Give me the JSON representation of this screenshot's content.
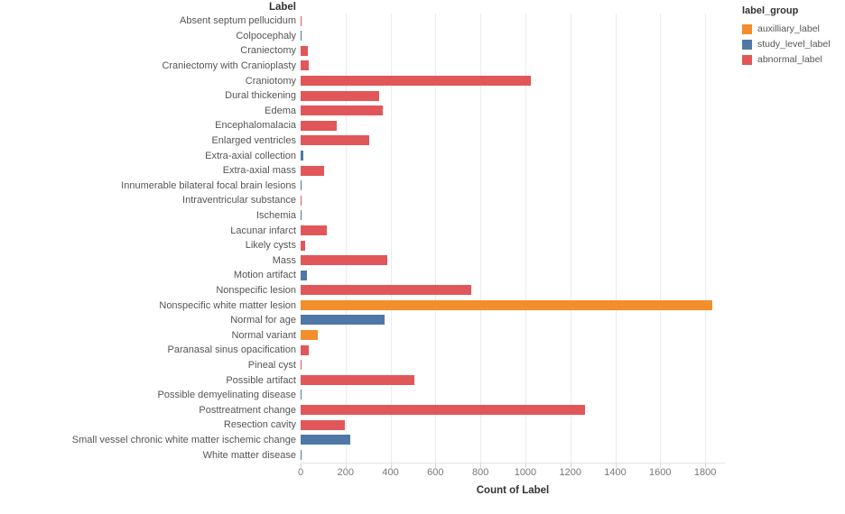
{
  "chart_title": "Label",
  "x_axis_title": "Count of Label",
  "legend": {
    "title": "label_group",
    "items": [
      {
        "key": "auxilliary_label",
        "label": "auxilliary_label",
        "color": "#f28e2b"
      },
      {
        "key": "study_level_label",
        "label": "study_level_label",
        "color": "#4e79a7"
      },
      {
        "key": "abnormal_label",
        "label": "abnormal_label",
        "color": "#e15759"
      }
    ]
  },
  "chart_data": {
    "type": "bar",
    "orientation": "horizontal",
    "title": "Label",
    "xlabel": "Count of Label",
    "ylabel": "Label",
    "xlim": [
      0,
      1888
    ],
    "x_ticks": [
      0,
      200,
      400,
      600,
      800,
      1000,
      1200,
      1400,
      1600,
      1800
    ],
    "grid": true,
    "legend_position": "top-right",
    "legend_title": "label_group",
    "groups": {
      "auxilliary_label": {
        "color": "#f28e2b"
      },
      "study_level_label": {
        "color": "#4e79a7"
      },
      "abnormal_label": {
        "color": "#e15759"
      }
    },
    "rows": [
      {
        "label": "Absent septum pellucidum",
        "group": "abnormal_label",
        "value": 3
      },
      {
        "label": "Colpocephaly",
        "group": "study_level_label",
        "value": 3
      },
      {
        "label": "Craniectomy",
        "group": "abnormal_label",
        "value": 32
      },
      {
        "label": "Craniectomy with Cranioplasty",
        "group": "abnormal_label",
        "value": 38
      },
      {
        "label": "Craniotomy",
        "group": "abnormal_label",
        "value": 1025
      },
      {
        "label": "Dural thickening",
        "group": "abnormal_label",
        "value": 350
      },
      {
        "label": "Edema",
        "group": "abnormal_label",
        "value": 367
      },
      {
        "label": "Encephalomalacia",
        "group": "abnormal_label",
        "value": 160
      },
      {
        "label": "Enlarged ventricles",
        "group": "abnormal_label",
        "value": 305
      },
      {
        "label": "Extra-axial collection",
        "group": "study_level_label",
        "value": 12
      },
      {
        "label": "Extra-axial mass",
        "group": "abnormal_label",
        "value": 105
      },
      {
        "label": "Innumerable bilateral focal brain lesions",
        "group": "study_level_label",
        "value": 2
      },
      {
        "label": "Intraventricular substance",
        "group": "abnormal_label",
        "value": 4
      },
      {
        "label": "Ischemia",
        "group": "study_level_label",
        "value": 2
      },
      {
        "label": "Lacunar infarct",
        "group": "abnormal_label",
        "value": 115
      },
      {
        "label": "Likely cysts",
        "group": "abnormal_label",
        "value": 20
      },
      {
        "label": "Mass",
        "group": "abnormal_label",
        "value": 385
      },
      {
        "label": "Motion artifact",
        "group": "study_level_label",
        "value": 30
      },
      {
        "label": "Nonspecific lesion",
        "group": "abnormal_label",
        "value": 760
      },
      {
        "label": "Nonspecific white matter lesion",
        "group": "auxilliary_label",
        "value": 1830
      },
      {
        "label": "Normal for age",
        "group": "study_level_label",
        "value": 372
      },
      {
        "label": "Normal variant",
        "group": "auxilliary_label",
        "value": 75
      },
      {
        "label": "Paranasal sinus opacification",
        "group": "abnormal_label",
        "value": 38
      },
      {
        "label": "Pineal cyst",
        "group": "abnormal_label",
        "value": 2
      },
      {
        "label": "Possible artifact",
        "group": "abnormal_label",
        "value": 507
      },
      {
        "label": "Possible demyelinating disease",
        "group": "study_level_label",
        "value": 2
      },
      {
        "label": "Posttreatment change",
        "group": "abnormal_label",
        "value": 1265
      },
      {
        "label": "Resection cavity",
        "group": "abnormal_label",
        "value": 197
      },
      {
        "label": "Small vessel chronic white matter ischemic change",
        "group": "study_level_label",
        "value": 222
      },
      {
        "label": "White matter disease",
        "group": "study_level_label",
        "value": 2
      }
    ]
  }
}
